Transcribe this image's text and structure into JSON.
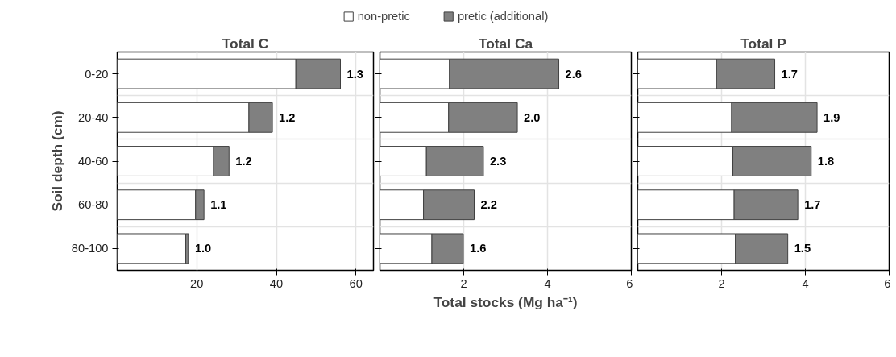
{
  "chart_data": [
    {
      "type": "bar",
      "orientation": "horizontal",
      "stacked": true,
      "title": "Total C",
      "ylabel": "Soil depth (cm)",
      "legend": "top",
      "grid": true,
      "categories": [
        "0-20",
        "20-40",
        "40-60",
        "60-80",
        "80-100"
      ],
      "series": [
        {
          "name": "non-pretic",
          "color": "#ffffff",
          "values": [
            44.9,
            33.1,
            24.2,
            19.7,
            17.2
          ]
        },
        {
          "name": "pretic (additional)",
          "color": "#808080",
          "values": [
            11.2,
            5.9,
            3.9,
            2.1,
            0.7
          ]
        }
      ],
      "xlim": [
        0,
        64.4
      ],
      "xticks": [
        20,
        40,
        60
      ],
      "annotations": [
        {
          "text": "1.3",
          "x": 56.1,
          "y": "0-20"
        },
        {
          "text": "1.2",
          "x": 39.0,
          "y": "20-40"
        },
        {
          "text": "1.2",
          "x": 28.1,
          "y": "40-60"
        },
        {
          "text": "1.1",
          "x": 21.8,
          "y": "60-80"
        },
        {
          "text": "1.0",
          "x": 17.9,
          "y": "80-100"
        }
      ]
    },
    {
      "type": "bar",
      "orientation": "horizontal",
      "stacked": true,
      "title": "Total Ca",
      "xlabel": "Total stocks (Mg ha⁻¹)",
      "grid": true,
      "tick_labels": "x",
      "categories": [
        "0-20",
        "20-40",
        "40-60",
        "60-80",
        "80-100"
      ],
      "series": [
        {
          "color": "#ffffff",
          "values": [
            1.66,
            1.64,
            1.11,
            1.04,
            1.24
          ]
        },
        {
          "color": "#808080",
          "values": [
            2.61,
            1.64,
            1.36,
            1.21,
            0.75
          ]
        }
      ],
      "xlim": [
        0,
        6
      ],
      "xticks": [
        2,
        4,
        6
      ],
      "annotations": [
        {
          "text": "2.6",
          "x": 4.27,
          "y": "0-20"
        },
        {
          "text": "2.0",
          "x": 3.28,
          "y": "20-40"
        },
        {
          "text": "2.3",
          "x": 2.47,
          "y": "40-60"
        },
        {
          "text": "2.2",
          "x": 2.25,
          "y": "60-80"
        },
        {
          "text": "1.6",
          "x": 1.99,
          "y": "80-100"
        }
      ]
    },
    {
      "type": "bar",
      "orientation": "horizontal",
      "stacked": true,
      "title": "Total P",
      "grid": true,
      "tick_labels": "x",
      "categories": [
        "0-20",
        "20-40",
        "40-60",
        "60-80",
        "80-100"
      ],
      "series": [
        {
          "color": "#ffffff",
          "values": [
            1.88,
            2.24,
            2.27,
            2.3,
            2.33
          ]
        },
        {
          "color": "#808080",
          "values": [
            1.39,
            2.04,
            1.87,
            1.52,
            1.25
          ]
        }
      ],
      "xlim": [
        0,
        6
      ],
      "xticks": [
        2,
        4,
        6
      ],
      "annotations": [
        {
          "text": "1.7",
          "x": 3.27,
          "y": "0-20"
        },
        {
          "text": "1.9",
          "x": 4.28,
          "y": "20-40"
        },
        {
          "text": "1.8",
          "x": 4.14,
          "y": "40-60"
        },
        {
          "text": "1.7",
          "x": 3.82,
          "y": "60-80"
        },
        {
          "text": "1.5",
          "x": 3.58,
          "y": "80-100"
        }
      ]
    }
  ]
}
